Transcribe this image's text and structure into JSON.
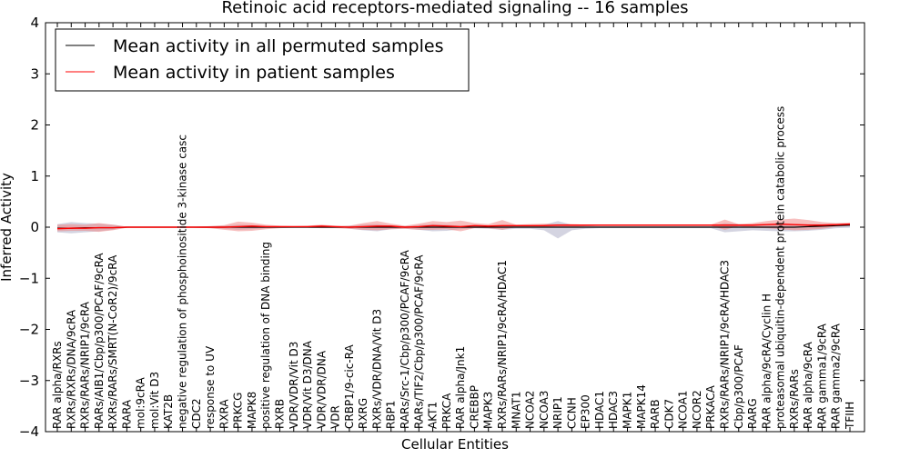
{
  "chart_data": {
    "type": "line",
    "title": "Retinoic acid receptors-mediated signaling -- 16 samples",
    "xlabel": "Cellular Entities",
    "ylabel": "Inferred Activity",
    "ylim": [
      -4,
      4
    ],
    "yticks": [
      "−4",
      "−3",
      "−2",
      "−1",
      "0",
      "1",
      "2",
      "3",
      "4"
    ],
    "grid": false,
    "legend_position": "top-left",
    "colors": {
      "permuted": "#000000",
      "patient": "#ff0000",
      "patient_band": "#f08080",
      "permuted_band": "#b0b0c8"
    },
    "categories": [
      "RAR alpha/RXRs",
      "RXRs/RXRs/DNA/9cRA",
      "RXRs/RARs/NRIP1/9cRA",
      "RARs/AIB1/Cbp/p300/PCAF/9cRA",
      "RXRs/RARs/SMRT(N-CoR2)/9cRA",
      "RARA",
      "mol:9cRA",
      "mol:Vit D3",
      "KAT2B",
      "negative regulation of phosphoinositide 3-kinase casc",
      "CDC2",
      "response to UV",
      "RXRA",
      "PRKCG",
      "MAPK8",
      "positive regulation of DNA binding",
      "RXRB",
      "VDR/VDR/Vit D3",
      "VDR/Vit D3/DNA",
      "VDR/VDR/DNA",
      "VDR",
      "CRBP1/9-cic-RA",
      "RXRG",
      "RXRs/VDR/DNA/Vit D3",
      "RBP1",
      "RARs/Src-1/Cbp/p300/PCAF/9cRA",
      "RARs/TIF2/Cbp/p300/PCAF/9cRA",
      "AKT1",
      "PRKCA",
      "RAR alpha/Jnk1",
      "CREBBP",
      "MAPK3",
      "RXRs/RARs/NRIP1/9cRA/HDAC1",
      "MNAT1",
      "NCOA2",
      "NCOA3",
      "NRIP1",
      "CCNH",
      "EP300",
      "HDAC1",
      "HDAC3",
      "MAPK1",
      "MAPK14",
      "RARB",
      "CDK7",
      "NCOA1",
      "NCOR2",
      "PRKACA",
      "RXRs/RARs/NRIP1/9cRA/HDAC3",
      "Cbp/p300/PCAF",
      "RARG",
      "RAR alpha/9cRA/Cyclin H",
      "proteasomal ubiquitin-dependent protein catabolic process",
      "RXRs/RARs",
      "RAR alpha/9cRA",
      "RAR gamma1/9cRA",
      "RAR gamma2/9cRA",
      "TFIIH"
    ],
    "series": [
      {
        "name": "Mean activity in all permuted samples",
        "color": "#000000",
        "values": [
          -0.02,
          -0.02,
          -0.01,
          -0.01,
          -0.01,
          0,
          0,
          0,
          0,
          0,
          0,
          0,
          0,
          0,
          0,
          0,
          0,
          0,
          0,
          0,
          0,
          0,
          0,
          0,
          0,
          0,
          0,
          0,
          0,
          0,
          0,
          0,
          0,
          0,
          0,
          0,
          0,
          0,
          0,
          0,
          0,
          0,
          0,
          0,
          0,
          0,
          0,
          0,
          0,
          0,
          0,
          0,
          0,
          0,
          0.01,
          0.02,
          0.03,
          0.04
        ],
        "band_upper": [
          0.06,
          0.1,
          0.08,
          0.07,
          0.05,
          0.01,
          0,
          0,
          0,
          0,
          0.01,
          0.02,
          0.03,
          0.05,
          0.04,
          0.02,
          0.01,
          0.01,
          0.01,
          0.01,
          0.01,
          0.03,
          0.05,
          0.06,
          0.03,
          0.02,
          0.04,
          0.06,
          0.05,
          0.03,
          0.02,
          0.03,
          0.04,
          0.02,
          0.02,
          0.05,
          0.12,
          0.05,
          0.03,
          0.02,
          0.02,
          0.02,
          0.02,
          0.02,
          0.02,
          0.02,
          0.02,
          0.02,
          0.08,
          0.06,
          0.04,
          0.05,
          0.06,
          0.06,
          0.06,
          0.06,
          0.06,
          0.07
        ],
        "band_lower": [
          -0.1,
          -0.12,
          -0.1,
          -0.08,
          -0.05,
          -0.01,
          0,
          0,
          0,
          0,
          -0.01,
          -0.02,
          -0.03,
          -0.05,
          -0.04,
          -0.02,
          -0.01,
          -0.01,
          -0.01,
          -0.01,
          -0.01,
          -0.03,
          -0.06,
          -0.08,
          -0.04,
          -0.03,
          -0.05,
          -0.08,
          -0.07,
          -0.04,
          -0.02,
          -0.03,
          -0.05,
          -0.03,
          -0.03,
          -0.06,
          -0.22,
          -0.06,
          -0.03,
          -0.02,
          -0.02,
          -0.02,
          -0.02,
          -0.02,
          -0.02,
          -0.02,
          -0.02,
          -0.02,
          -0.1,
          -0.08,
          -0.06,
          -0.07,
          -0.08,
          -0.08,
          -0.07,
          -0.05,
          -0.02,
          -0.01
        ]
      },
      {
        "name": "Mean activity in patient samples",
        "color": "#ff0000",
        "values": [
          -0.03,
          -0.02,
          -0.02,
          -0.01,
          -0.01,
          0,
          0,
          0,
          0,
          0,
          0,
          0,
          0,
          0.01,
          0.02,
          0.01,
          0.01,
          0.01,
          0.01,
          0.02,
          0.01,
          0,
          0.01,
          0.02,
          0.02,
          0,
          0.01,
          0.03,
          0.02,
          0.01,
          0.03,
          0.02,
          0.03,
          0.03,
          0.03,
          0.03,
          0.04,
          0.04,
          0.04,
          0.04,
          0.04,
          0.04,
          0.04,
          0.04,
          0.04,
          0.04,
          0.04,
          0.04,
          0.04,
          0.04,
          0.04,
          0.05,
          0.06,
          0.05,
          0.04,
          0.04,
          0.05,
          0.06
        ],
        "band_upper": [
          0.05,
          0.06,
          0.05,
          0.08,
          0.05,
          0.01,
          0,
          0,
          0,
          0,
          0.01,
          0.02,
          0.04,
          0.11,
          0.09,
          0.05,
          0.03,
          0.02,
          0.03,
          0.05,
          0.03,
          0.03,
          0.08,
          0.12,
          0.07,
          0.03,
          0.07,
          0.12,
          0.1,
          0.13,
          0.08,
          0.06,
          0.14,
          0.05,
          0.06,
          0.07,
          0.06,
          0.06,
          0.05,
          0.05,
          0.05,
          0.05,
          0.05,
          0.05,
          0.05,
          0.05,
          0.05,
          0.05,
          0.15,
          0.06,
          0.08,
          0.12,
          0.15,
          0.17,
          0.14,
          0.1,
          0.08,
          0.09
        ],
        "band_lower": [
          -0.08,
          -0.07,
          -0.07,
          -0.09,
          -0.06,
          -0.01,
          0,
          0,
          0,
          0,
          -0.01,
          -0.02,
          -0.05,
          -0.08,
          -0.07,
          -0.04,
          -0.02,
          -0.01,
          -0.01,
          -0.02,
          -0.02,
          -0.03,
          -0.05,
          -0.06,
          -0.04,
          -0.03,
          -0.05,
          -0.05,
          -0.04,
          -0.08,
          -0.02,
          -0.02,
          -0.05,
          0,
          0,
          0,
          0,
          0,
          0.02,
          0.03,
          0.03,
          0.03,
          0.03,
          0.03,
          0.03,
          0.03,
          0.03,
          0.03,
          -0.05,
          0.02,
          -0.01,
          -0.02,
          -0.04,
          -0.06,
          -0.05,
          -0.03,
          0.01,
          0.03
        ]
      }
    ]
  }
}
